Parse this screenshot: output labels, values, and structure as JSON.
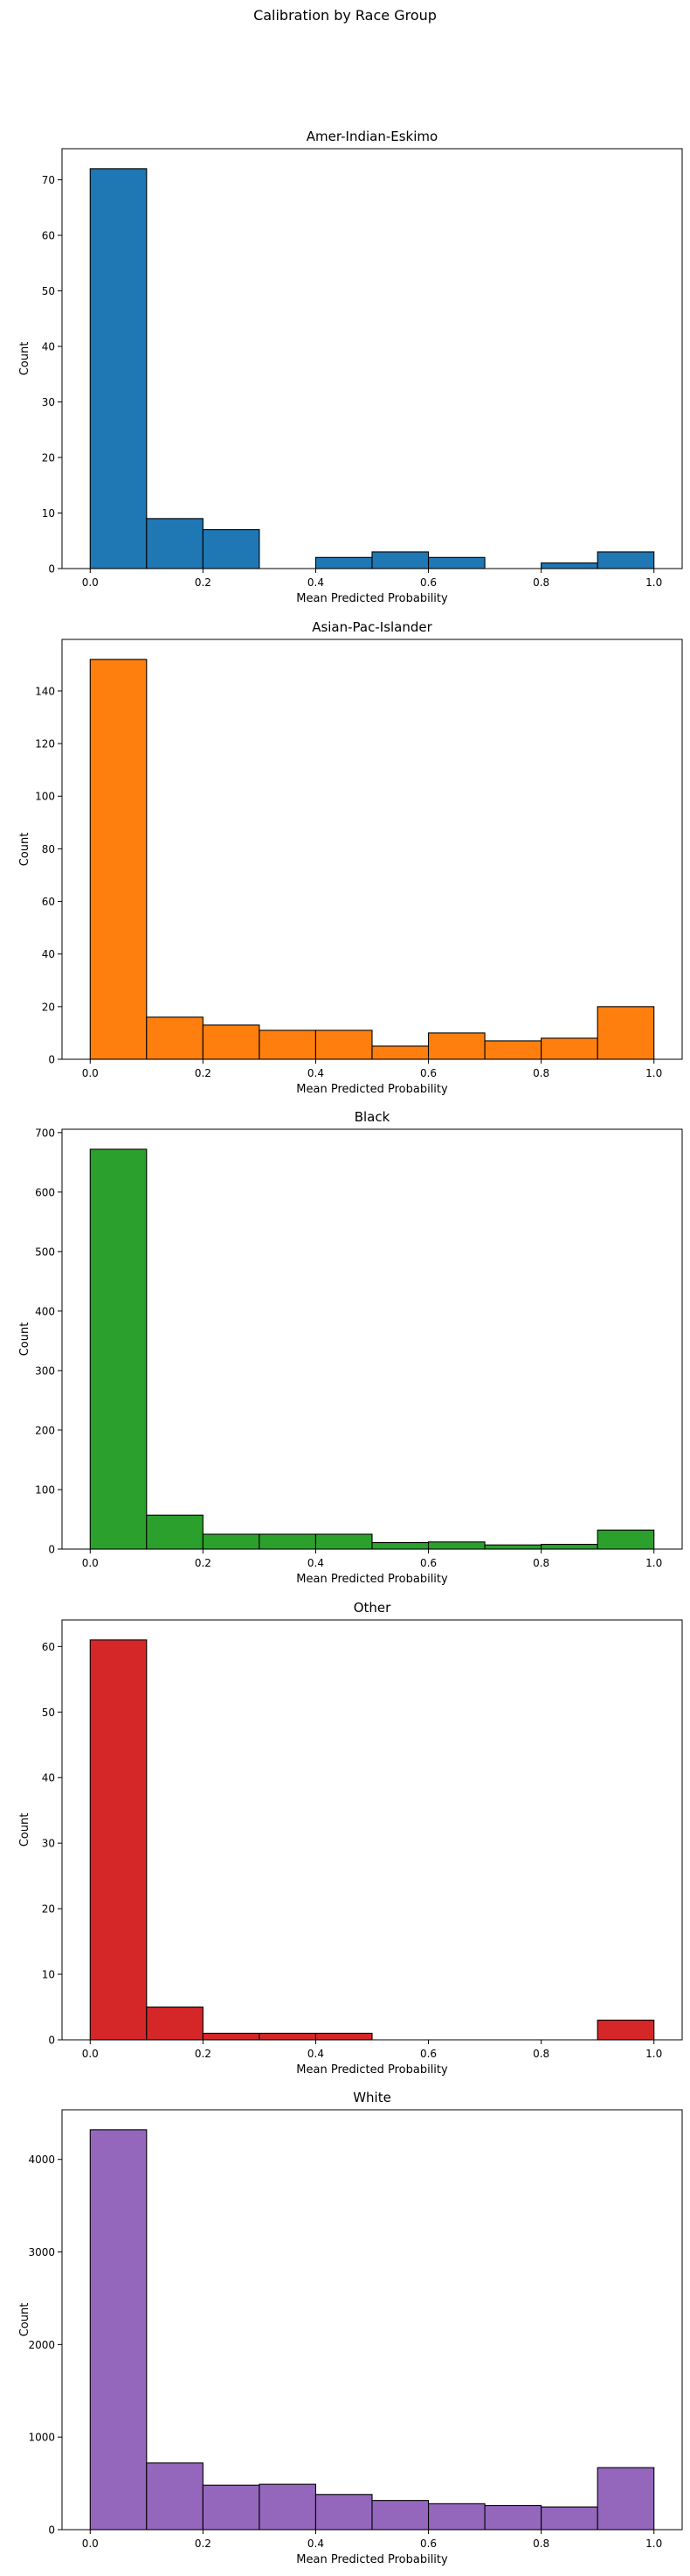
{
  "suptitle": "Calibration by Race Group",
  "chart_data": [
    {
      "type": "bar",
      "title": "Amer-Indian-Eskimo",
      "xlabel": "Mean Predicted Probability",
      "ylabel": "Count",
      "color": "#1f77b4",
      "bin_edges": [
        0.0,
        0.1,
        0.2,
        0.3,
        0.4,
        0.5,
        0.6,
        0.7,
        0.8,
        0.9,
        1.0
      ],
      "values": [
        72,
        9,
        7,
        0,
        2,
        3,
        2,
        0,
        1,
        3
      ],
      "xlim": [
        -0.05,
        1.05
      ],
      "ylim": [
        0,
        75.6
      ],
      "xticks": [
        0.0,
        0.2,
        0.4,
        0.6,
        0.8,
        1.0
      ],
      "xtick_labels": [
        "0.0",
        "0.2",
        "0.4",
        "0.6",
        "0.8",
        "1.0"
      ],
      "yticks": [
        0,
        10,
        20,
        30,
        40,
        50,
        60,
        70
      ],
      "ytick_labels": [
        "0",
        "10",
        "20",
        "30",
        "40",
        "50",
        "60",
        "70"
      ]
    },
    {
      "type": "bar",
      "title": "Asian-Pac-Islander",
      "xlabel": "Mean Predicted Probability",
      "ylabel": "Count",
      "color": "#ff7f0e",
      "bin_edges": [
        0.0,
        0.1,
        0.2,
        0.3,
        0.4,
        0.5,
        0.6,
        0.7,
        0.8,
        0.9,
        1.0
      ],
      "values": [
        152,
        16,
        13,
        11,
        11,
        5,
        10,
        7,
        8,
        20
      ],
      "xlim": [
        -0.05,
        1.05
      ],
      "ylim": [
        0,
        159.6
      ],
      "xticks": [
        0.0,
        0.2,
        0.4,
        0.6,
        0.8,
        1.0
      ],
      "xtick_labels": [
        "0.0",
        "0.2",
        "0.4",
        "0.6",
        "0.8",
        "1.0"
      ],
      "yticks": [
        0,
        20,
        40,
        60,
        80,
        100,
        120,
        140
      ],
      "ytick_labels": [
        "0",
        "20",
        "40",
        "60",
        "80",
        "100",
        "120",
        "140"
      ]
    },
    {
      "type": "bar",
      "title": "Black",
      "xlabel": "Mean Predicted Probability",
      "ylabel": "Count",
      "color": "#2ca02c",
      "bin_edges": [
        0.0,
        0.1,
        0.2,
        0.3,
        0.4,
        0.5,
        0.6,
        0.7,
        0.8,
        0.9,
        1.0
      ],
      "values": [
        672,
        57,
        25,
        25,
        25,
        11,
        12,
        7,
        8,
        32
      ],
      "xlim": [
        -0.05,
        1.05
      ],
      "ylim": [
        0,
        705.6
      ],
      "xticks": [
        0.0,
        0.2,
        0.4,
        0.6,
        0.8,
        1.0
      ],
      "xtick_labels": [
        "0.0",
        "0.2",
        "0.4",
        "0.6",
        "0.8",
        "1.0"
      ],
      "yticks": [
        0,
        100,
        200,
        300,
        400,
        500,
        600,
        700
      ],
      "ytick_labels": [
        "0",
        "100",
        "200",
        "300",
        "400",
        "500",
        "600",
        "700"
      ]
    },
    {
      "type": "bar",
      "title": "Other",
      "xlabel": "Mean Predicted Probability",
      "ylabel": "Count",
      "color": "#d62728",
      "bin_edges": [
        0.0,
        0.1,
        0.2,
        0.3,
        0.4,
        0.5,
        0.6,
        0.7,
        0.8,
        0.9,
        1.0
      ],
      "values": [
        61,
        5,
        1,
        1,
        1,
        0,
        0,
        0,
        0,
        3
      ],
      "xlim": [
        -0.05,
        1.05
      ],
      "ylim": [
        0,
        64.05
      ],
      "xticks": [
        0.0,
        0.2,
        0.4,
        0.6,
        0.8,
        1.0
      ],
      "xtick_labels": [
        "0.0",
        "0.2",
        "0.4",
        "0.6",
        "0.8",
        "1.0"
      ],
      "yticks": [
        0,
        10,
        20,
        30,
        40,
        50,
        60
      ],
      "ytick_labels": [
        "0",
        "10",
        "20",
        "30",
        "40",
        "50",
        "60"
      ]
    },
    {
      "type": "bar",
      "title": "White",
      "xlabel": "Mean Predicted Probability",
      "ylabel": "Count",
      "color": "#9467bd",
      "bin_edges": [
        0.0,
        0.1,
        0.2,
        0.3,
        0.4,
        0.5,
        0.6,
        0.7,
        0.8,
        0.9,
        1.0
      ],
      "values": [
        4320,
        720,
        480,
        490,
        380,
        315,
        280,
        260,
        245,
        670
      ],
      "xlim": [
        -0.05,
        1.05
      ],
      "ylim": [
        0,
        4536
      ],
      "xticks": [
        0.0,
        0.2,
        0.4,
        0.6,
        0.8,
        1.0
      ],
      "xtick_labels": [
        "0.0",
        "0.2",
        "0.4",
        "0.6",
        "0.8",
        "1.0"
      ],
      "yticks": [
        0,
        1000,
        2000,
        3000,
        4000
      ],
      "ytick_labels": [
        "0",
        "1000",
        "2000",
        "3000",
        "4000"
      ]
    }
  ]
}
